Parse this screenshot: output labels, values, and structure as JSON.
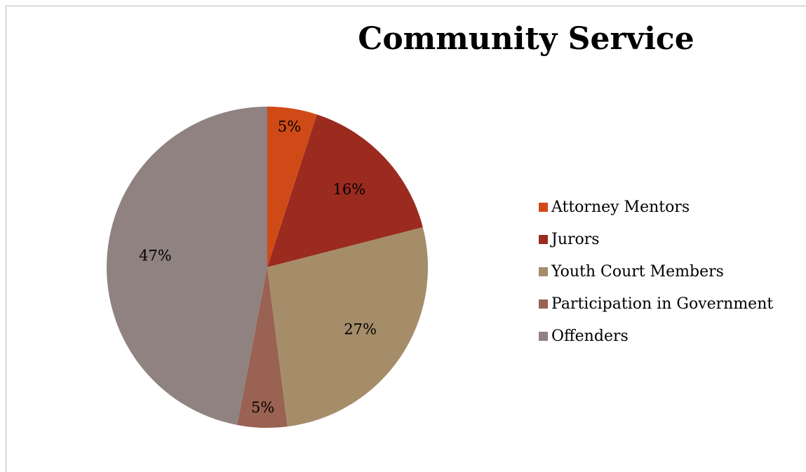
{
  "chart_data": {
    "type": "pie",
    "title": "Community Service",
    "categories": [
      "Attorney Mentors",
      "Jurors",
      "Youth Court Members",
      "Participation in Government",
      "Offenders"
    ],
    "values": [
      5,
      16,
      27,
      5,
      47
    ],
    "data_labels": [
      "5%",
      "16%",
      "27%",
      "5%",
      "47%"
    ],
    "colors": [
      "#d04a18",
      "#9a2b1e",
      "#a58d6a",
      "#9a6252",
      "#8f8280"
    ],
    "legend_position": "right",
    "start_angle": "12 o'clock",
    "direction": "clockwise"
  }
}
